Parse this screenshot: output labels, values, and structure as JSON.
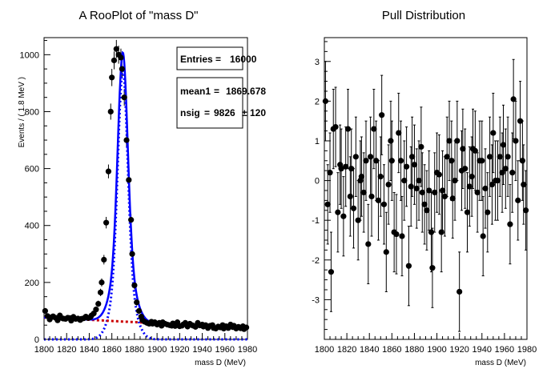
{
  "chart_data": [
    {
      "type": "scatter",
      "title": "A RooPlot of \"mass D\"",
      "xlabel": "mass D (MeV)",
      "ylabel": "Events / ( 1.8 MeV )",
      "xlim": [
        1800,
        1980
      ],
      "ylim": [
        0,
        1060
      ],
      "x_ticks": [
        1800,
        1820,
        1840,
        1860,
        1880,
        1900,
        1920,
        1940,
        1960,
        1980
      ],
      "y_ticks": [
        0,
        200,
        400,
        600,
        800,
        1000
      ],
      "stats": [
        {
          "label": "Entries",
          "value": "16000"
        },
        {
          "label": "mean1",
          "value": "1869.678"
        },
        {
          "label": "nsig",
          "value": "9826",
          "error": "120"
        }
      ],
      "series": [
        {
          "kind": "points",
          "x": [
            1801,
            1803,
            1805,
            1806,
            1808,
            1810,
            1812,
            1814,
            1815,
            1817,
            1819,
            1821,
            1823,
            1824,
            1826,
            1828,
            1830,
            1832,
            1833,
            1835,
            1837,
            1839,
            1841,
            1842,
            1844,
            1846,
            1848,
            1850,
            1851,
            1853,
            1855,
            1857,
            1859,
            1860,
            1862,
            1864,
            1866,
            1868,
            1869,
            1871,
            1873,
            1875,
            1877,
            1878,
            1880,
            1882,
            1884,
            1886,
            1887,
            1889,
            1891,
            1893,
            1895,
            1896,
            1898,
            1900,
            1902,
            1904,
            1905,
            1907,
            1909,
            1911,
            1913,
            1914,
            1916,
            1918,
            1920,
            1922,
            1923,
            1925,
            1927,
            1929,
            1931,
            1932,
            1934,
            1936,
            1938,
            1940,
            1941,
            1943,
            1945,
            1947,
            1949,
            1950,
            1952,
            1954,
            1956,
            1958,
            1959,
            1961,
            1963,
            1965,
            1967,
            1968,
            1970,
            1972,
            1974,
            1976,
            1977,
            1979
          ],
          "y": [
            100,
            82,
            70,
            77,
            81,
            76,
            67,
            84,
            76,
            73,
            72,
            76,
            75,
            66,
            79,
            72,
            73,
            68,
            72,
            74,
            80,
            75,
            78,
            84,
            91,
            105,
            125,
            165,
            200,
            280,
            410,
            590,
            800,
            920,
            980,
            1020,
            1000,
            990,
            950,
            850,
            700,
            560,
            420,
            300,
            190,
            130,
            100,
            80,
            68,
            62,
            58,
            55,
            62,
            55,
            60,
            52,
            58,
            48,
            60,
            55,
            52,
            50,
            48,
            56,
            47,
            60,
            46,
            48,
            52,
            58,
            45,
            55,
            50,
            48,
            44,
            58,
            49,
            52,
            45,
            50,
            40,
            48,
            50,
            40,
            38,
            45,
            42,
            50,
            38,
            46,
            40,
            52,
            43,
            48,
            38,
            44,
            39,
            46,
            36,
            42
          ]
        },
        {
          "kind": "curve",
          "name": "",
          "color": "#0000ff",
          "style": "solid"
        },
        {
          "kind": "curve",
          "name": "",
          "color": "#0000ff",
          "style": "dotted"
        },
        {
          "kind": "curve",
          "name": "",
          "color": "#cc0000",
          "style": "dotted"
        }
      ]
    },
    {
      "type": "scatter",
      "title": "Pull Distribution",
      "xlabel": "mass D (MeV)",
      "ylabel": "",
      "xlim": [
        1800,
        1980
      ],
      "ylim": [
        -4,
        3.6
      ],
      "x_ticks": [
        1800,
        1820,
        1840,
        1860,
        1880,
        1900,
        1920,
        1940,
        1960,
        1980
      ],
      "y_ticks": [
        -3,
        -2,
        -1,
        0,
        1,
        2,
        3
      ],
      "series": [
        {
          "kind": "points_with_errors",
          "x": [
            1801,
            1803,
            1805,
            1806,
            1808,
            1810,
            1812,
            1814,
            1815,
            1817,
            1819,
            1821,
            1823,
            1824,
            1826,
            1828,
            1830,
            1832,
            1833,
            1835,
            1837,
            1839,
            1841,
            1842,
            1844,
            1846,
            1848,
            1850,
            1851,
            1853,
            1855,
            1857,
            1859,
            1860,
            1862,
            1864,
            1866,
            1868,
            1869,
            1871,
            1873,
            1875,
            1877,
            1878,
            1880,
            1882,
            1884,
            1886,
            1887,
            1889,
            1891,
            1893,
            1895,
            1896,
            1898,
            1900,
            1902,
            1904,
            1905,
            1907,
            1909,
            1911,
            1913,
            1914,
            1916,
            1918,
            1920,
            1922,
            1923,
            1925,
            1927,
            1929,
            1931,
            1932,
            1934,
            1936,
            1938,
            1940,
            1941,
            1943,
            1945,
            1947,
            1949,
            1950,
            1952,
            1954,
            1956,
            1958,
            1959,
            1961,
            1963,
            1965,
            1967,
            1968,
            1970,
            1972,
            1974,
            1976,
            1977,
            1979
          ],
          "y": [
            2.0,
            -0.6,
            0.2,
            -2.3,
            1.3,
            1.35,
            -0.8,
            0.4,
            0.3,
            -0.9,
            0.35,
            1.3,
            -0.4,
            0.3,
            -0.7,
            0.6,
            -1.0,
            0.0,
            0.1,
            -0.3,
            0.5,
            -1.6,
            0.6,
            -0.4,
            1.3,
            0.5,
            -0.5,
            0.1,
            1.65,
            -0.6,
            -1.8,
            -0.1,
            1.0,
            0.5,
            -1.3,
            -1.35,
            1.2,
            0.5,
            -1.4,
            0.0,
            0.35,
            -2.15,
            -0.15,
            0.6,
            0.4,
            -0.2,
            0.0,
            0.85,
            -0.3,
            -0.6,
            -0.75,
            -0.25,
            -1.3,
            -2.2,
            -0.3,
            0.2,
            0.15,
            -1.3,
            -0.25,
            -0.4,
            0.6,
            1.0,
            0.5,
            -0.45,
            0.0,
            1.0,
            -2.8,
            0.25,
            0.8,
            0.3,
            -0.8,
            -0.15,
            0.1,
            0.8,
            0.75,
            -0.3,
            0.5,
            0.5,
            -1.4,
            -0.2,
            -0.8,
            0.6,
            -0.1,
            1.2,
            0.0,
            0.0,
            0.6,
            0.2,
            0.9,
            0.3,
            0.6,
            -1.1,
            0.2,
            2.05,
            1.0,
            -0.5,
            1.5,
            0.5,
            -0.1,
            -0.75
          ],
          "errors": [
            1,
            1,
            1,
            1,
            1,
            1,
            1,
            1,
            1,
            1,
            1,
            1,
            1,
            1,
            1,
            1,
            1,
            1,
            1,
            1,
            1,
            1,
            1,
            1,
            1,
            1,
            1,
            1,
            1,
            1,
            1,
            1,
            1,
            1,
            1,
            1,
            1,
            1,
            1,
            1,
            1,
            1,
            1,
            1,
            1,
            1,
            1,
            1,
            1,
            1,
            1,
            1,
            1,
            1,
            1,
            1,
            1,
            1,
            1,
            1,
            1,
            1,
            1,
            1,
            1,
            1,
            1,
            1,
            1,
            1,
            1,
            1,
            1,
            1,
            1,
            1,
            1,
            1,
            1,
            1,
            1,
            1,
            1,
            1,
            1,
            1,
            1,
            1,
            1,
            1,
            1,
            1,
            1,
            1,
            1,
            1,
            1,
            1,
            1,
            1
          ]
        }
      ]
    }
  ]
}
